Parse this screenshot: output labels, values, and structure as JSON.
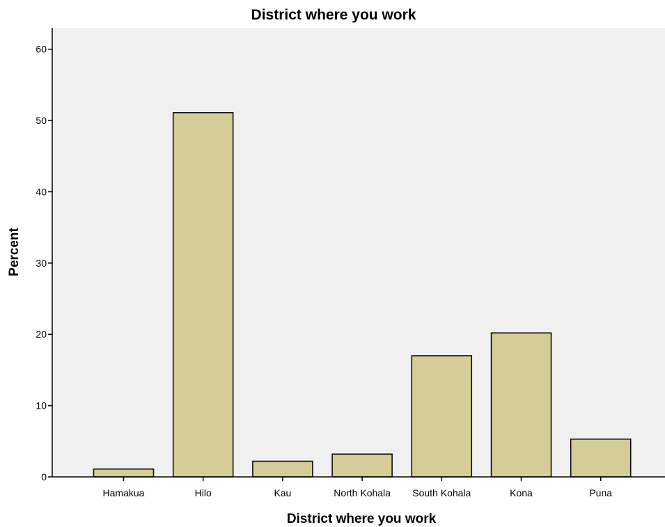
{
  "chart_data": {
    "type": "bar",
    "title": "District where you work",
    "xlabel": "District where you work",
    "ylabel": "Percent",
    "categories": [
      "Hamakua",
      "Hilo",
      "Kau",
      "North Kohala",
      "South Kohala",
      "Kona",
      "Puna"
    ],
    "values": [
      1.1,
      51.1,
      2.2,
      3.2,
      17.0,
      20.2,
      5.3
    ],
    "ylim": [
      0,
      63
    ],
    "yticks": [
      0,
      10,
      20,
      30,
      40,
      50,
      60
    ],
    "grid": false,
    "legend": "none",
    "colors": {
      "bar_fill": "#d4cd97",
      "bar_stroke": "#000000",
      "plot_background": "#f0f0f0",
      "axis": "#000000"
    }
  }
}
